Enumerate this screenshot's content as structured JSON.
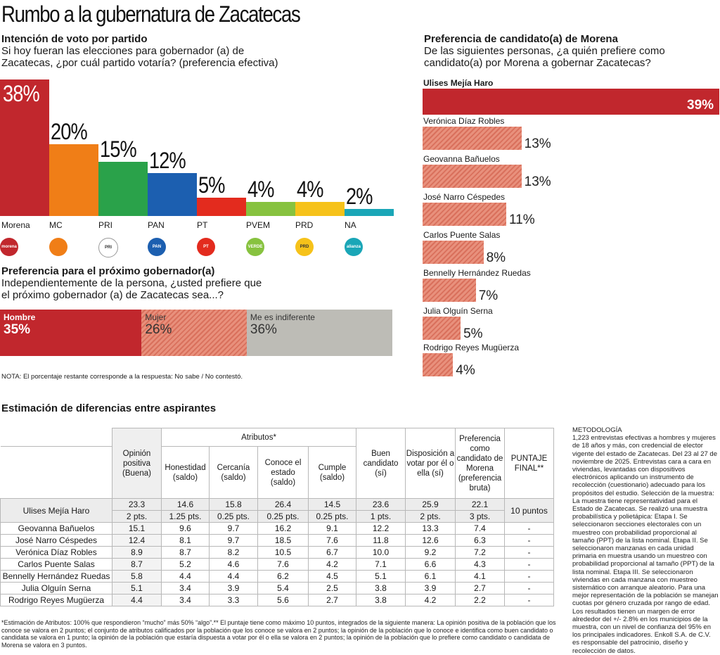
{
  "title": "Rumbo a la gubernatura de Zacatecas",
  "party_section": {
    "heading": "Intención de voto por partido",
    "question": "Si hoy fueran las elecciones para gobernador (a) de Zacatecas, ¿por cuál partido votaría? (preferencia efectiva)"
  },
  "candidate_section": {
    "heading": "Preferencia de candidato(a) de Morena",
    "question": "De las siguientes personas, ¿a quién prefiere como candidato(a) por Morena a gobernar Zacatecas?"
  },
  "gender_section": {
    "heading": "Preferencia para el próximo gobernador(a)",
    "question": "Independientemente de la persona, ¿usted prefiere que el próximo gobernador (a) de Zacatecas sea...?",
    "note": "NOTA: El porcentaje restante corresponde a la respuesta: No sabe / No contestó."
  },
  "chart_data": [
    {
      "type": "bar",
      "categories": [
        "Morena",
        "MC",
        "PRI",
        "PAN",
        "PT",
        "PVEM",
        "PRD",
        "NA"
      ],
      "values": [
        38,
        20,
        15,
        12,
        5,
        4,
        4,
        2
      ],
      "labels": [
        "38%",
        "20%",
        "15%",
        "12%",
        "5%",
        "4%",
        "4%",
        "2%"
      ],
      "logo_text": [
        "morena",
        "",
        "PRI",
        "PAN",
        "PT",
        "VERDE",
        "PRD",
        "alianza"
      ],
      "colors": [
        "#c1272d",
        "#f07e17",
        "#2aa24a",
        "#1c5fb0",
        "#e32b1e",
        "#87c23f",
        "#f6c21a",
        "#1aa6b7"
      ]
    },
    {
      "type": "bar",
      "categories": [
        "Ulises Mejía Haro",
        "Verónica Díaz Robles",
        "Geovanna Bañuelos",
        "José Narro Céspedes",
        "Carlos Puente Salas",
        "Bennelly Hernández Ruedas",
        "Julia Olguín Serna",
        "Rodrigo Reyes Mugüerza"
      ],
      "values": [
        39,
        13,
        13,
        11,
        8,
        7,
        5,
        4
      ],
      "labels": [
        "39%",
        "13%",
        "13%",
        "11%",
        "8%",
        "7%",
        "5%",
        "4%"
      ]
    },
    {
      "type": "bar",
      "categories": [
        "Hombre",
        "Mujer",
        "Me es indiferente"
      ],
      "values": [
        35,
        26,
        36
      ],
      "labels": [
        "35%",
        "26%",
        "36%"
      ],
      "colors": [
        "#c1272d",
        "#e8907c",
        "#bdbcb6"
      ]
    }
  ],
  "table": {
    "heading": "Estimación de diferencias entre aspirantes",
    "col_opinion": "Opinión positiva (Buena)",
    "col_atributos": "Atributos*",
    "sub_cols": [
      "Honestidad (saldo)",
      "Cercanía (saldo)",
      "Conoce el estado (saldo)",
      "Cumple (saldo)"
    ],
    "col_buen": "Buen candidato (sí)",
    "col_disp": "Disposición a votar por él o ella (sí)",
    "col_pref": "Preferencia como candidato de Morena (preferencia bruta)",
    "col_final": "PUNTAJE FINAL**",
    "leader": {
      "name": "Ulises Mejía Haro",
      "values": [
        "23.3",
        "14.6",
        "15.8",
        "26.4",
        "14.5",
        "23.6",
        "25.9",
        "22.1"
      ],
      "points": [
        "2 pts.",
        "1.25 pts.",
        "0.25 pts.",
        "0.25 pts.",
        "0.25 pts.",
        "1 pts.",
        "2 pts.",
        "3 pts."
      ],
      "final": "10 puntos"
    },
    "rows": [
      {
        "name": "Geovanna Bañuelos",
        "values": [
          "15.1",
          "9.6",
          "9.7",
          "16.2",
          "9.1",
          "12.2",
          "13.3",
          "7.4"
        ],
        "final": "-"
      },
      {
        "name": "José Narro Céspedes",
        "values": [
          "12.4",
          "8.1",
          "9.7",
          "18.5",
          "7.6",
          "11.8",
          "12.6",
          "6.3"
        ],
        "final": "-"
      },
      {
        "name": "Verónica Díaz Robles",
        "values": [
          "8.9",
          "8.7",
          "8.2",
          "10.5",
          "6.7",
          "10.0",
          "9.2",
          "7.2"
        ],
        "final": "-"
      },
      {
        "name": "Carlos Puente Salas",
        "values": [
          "8.7",
          "5.2",
          "4.6",
          "7.6",
          "4.2",
          "7.1",
          "6.6",
          "4.3"
        ],
        "final": "-"
      },
      {
        "name": "Bennelly Hernández Ruedas",
        "values": [
          "5.8",
          "4.4",
          "4.4",
          "6.2",
          "4.5",
          "5.1",
          "6.1",
          "4.1"
        ],
        "final": "-"
      },
      {
        "name": "Julia Olguín Serna",
        "values": [
          "5.1",
          "3.4",
          "3.9",
          "5.4",
          "2.5",
          "3.8",
          "3.9",
          "2.7"
        ],
        "final": "-"
      },
      {
        "name": "Rodrigo Reyes Mugüerza",
        "values": [
          "4.4",
          "3.4",
          "3.3",
          "5.6",
          "2.7",
          "3.8",
          "4.2",
          "2.2"
        ],
        "final": "-"
      }
    ]
  },
  "methodology": {
    "heading": "METODOLOGÍA",
    "text": "1,223 entrevistas efectivas a hombres y mujeres de 18 años y más, con credencial de elector vigente del estado de Zacatecas. Del 23 al 27 de noviembre de 2025. Entrevistas cara a cara en viviendas, levantadas con dispositivos electrónicos aplicando un instrumento de recolección (cuestionario) adecuado para los propósitos del estudio. Selección de la muestra: La muestra tiene representatividad para el Estado de Zacatecas. Se realizó una muestra probabilística y polietápica: Etapa I. Se seleccionaron secciones electorales con un muestreo con probabilidad proporcional al tamaño (PPT) de la lista nominal. Etapa II. Se seleccionaron manzanas en cada unidad primaria en muestra usando un muestreo con probabilidad proporcional al tamaño (PPT) de la lista nominal. Etapa III. Se seleccionaron viviendas en cada manzana con muestreo sistemático con arranque aleatorio. Para una mejor representación de la población se manejan cuotas por género cruzada por rango de edad. Los resultados tienen un margen de error alrededor del +/- 2.8% en los municipios de la muestra, con un nivel de confianza del 95% en los principales indicadores. Enkoll S.A. de C.V. es responsable del patrocinio, diseño y recolección de datos."
  },
  "footnote": "*Estimación de Atributos: 100% que respondieron “mucho” más 50% “algo”.** El puntaje tiene como máximo 10 puntos, integrados de la siguiente manera: La opinión positiva de la población que los conoce se valora en 2 puntos; el conjunto de atributos calificados por la población que los conoce se valora en 2 puntos; la opinión de la población que lo conoce e identifica como buen candidato o candidata se valora en 1 punto; la opinión de la población que estaría dispuesta a votar por él o ella se valora en 2 puntos; la opinión de la población que lo prefiere como candidato o candidata de Morena se valora en 3 puntos."
}
